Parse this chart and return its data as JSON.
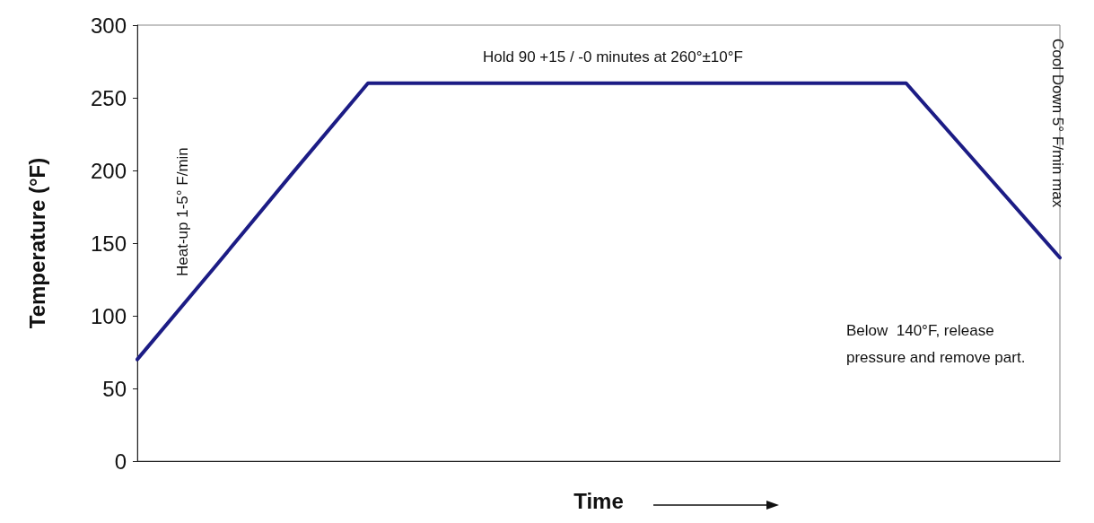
{
  "chart_data": {
    "type": "line",
    "xlabel": "Time",
    "ylabel": "Temperature (°F)",
    "categories": [
      null,
      null,
      null,
      null,
      null,
      null,
      null,
      null,
      null,
      null,
      null,
      null,
      null
    ],
    "series": [
      {
        "color": "#1c1c85",
        "values": [
          70,
          133,
          197,
          260,
          260,
          260,
          260,
          260,
          260,
          260,
          260,
          200,
          140
        ]
      }
    ],
    "ylim": [
      0,
      300
    ],
    "yticks": [
      0,
      50,
      100,
      150,
      200,
      250,
      300
    ],
    "grid": false,
    "marker": "none",
    "line_style": "solid",
    "annotations": [
      "Hold 90 +15 / -0 minutes at 260°±10°F",
      "Heat-up 1-5° F/min",
      "Cool Down 5° F/min max",
      "Below  140°F, release pressure and remove part."
    ]
  }
}
